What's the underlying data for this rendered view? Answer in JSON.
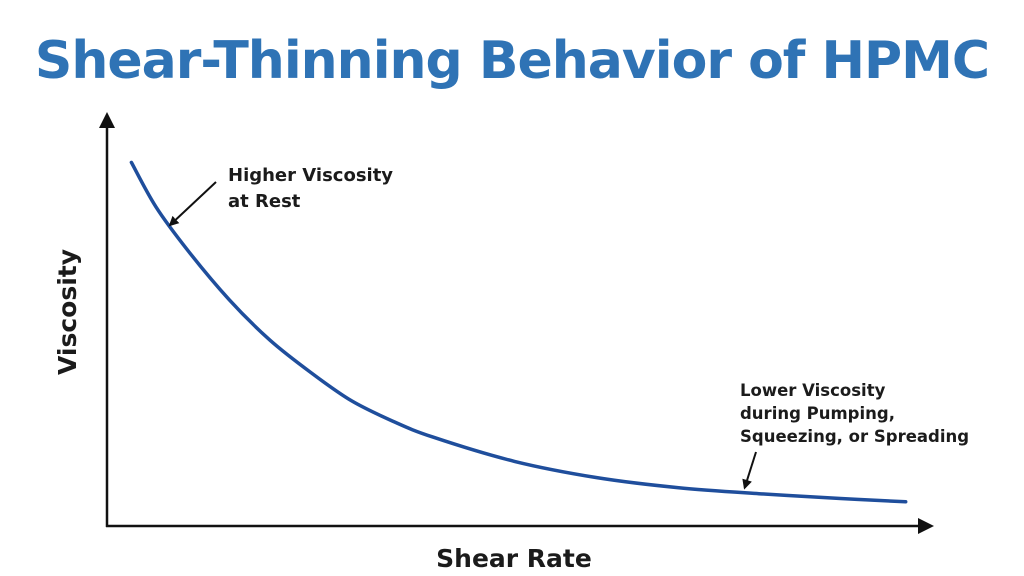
{
  "chart_data": {
    "type": "line",
    "title": "Shear-Thinning Behavior of HPMC",
    "xlabel": "Shear Rate",
    "ylabel": "Viscosity",
    "xlim": [
      0,
      10
    ],
    "ylim": [
      0,
      10
    ],
    "grid": false,
    "legend": "none",
    "line_color": "#1f4e9c",
    "title_color": "#2f73b5",
    "series": [
      {
        "x": [
          0.3,
          0.6,
          1.0,
          1.5,
          2.0,
          2.5,
          3.0,
          3.5,
          4.0,
          5.0,
          6.0,
          7.0,
          8.0,
          9.0,
          9.8
        ],
        "y": [
          9.0,
          7.9,
          6.8,
          5.6,
          4.6,
          3.8,
          3.1,
          2.6,
          2.2,
          1.6,
          1.2,
          0.95,
          0.8,
          0.68,
          0.6
        ]
      }
    ],
    "annotations": [
      {
        "lines": [
          "Higher Viscosity",
          "at Rest"
        ],
        "point": [
          0.7,
          7.5
        ]
      },
      {
        "lines": [
          "Lower Viscosity",
          "during Pumping,",
          "Squeezing, or Spreading"
        ],
        "point": [
          7.8,
          0.75
        ]
      }
    ]
  }
}
